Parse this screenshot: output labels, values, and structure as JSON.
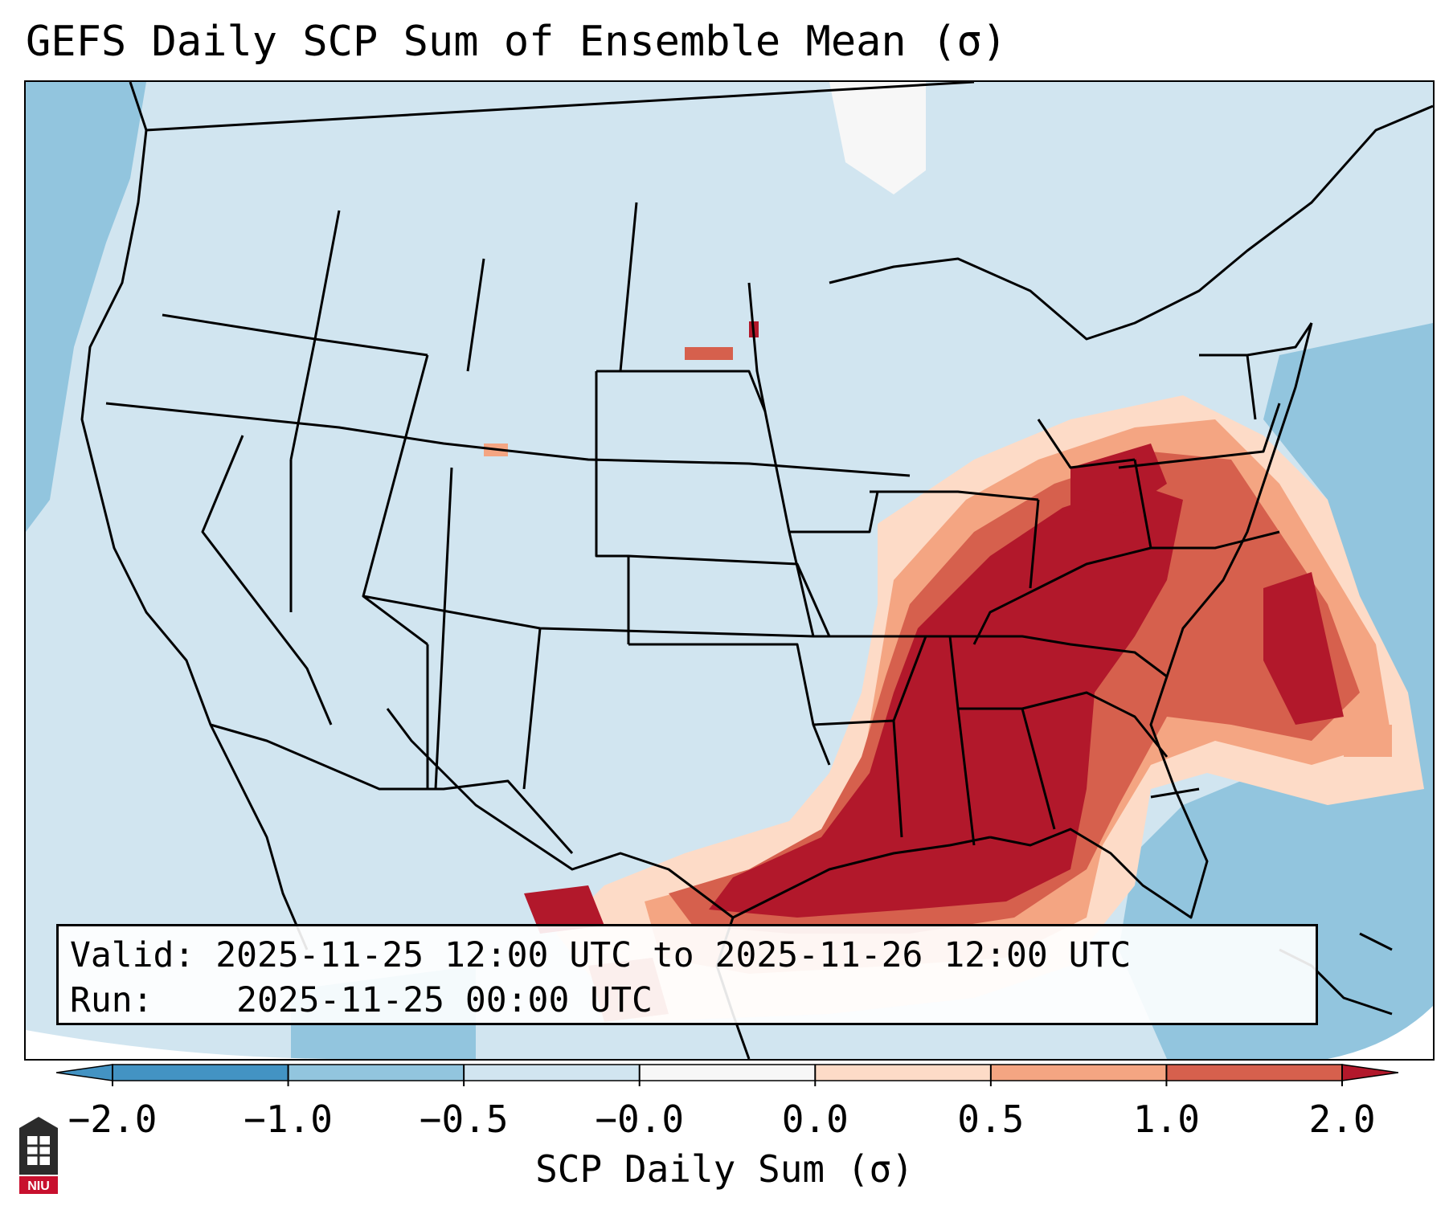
{
  "title": "GEFS Daily SCP Sum of Ensemble Mean (σ)",
  "info": {
    "valid_label": "Valid:",
    "valid_value": "2025-11-25 12:00 UTC to 2025-11-26 12:00 UTC",
    "run_label": "Run:",
    "run_value": "2025-11-25 00:00 UTC"
  },
  "colorbar": {
    "label": "SCP Daily Sum (σ)",
    "ticks": [
      "−2.0",
      "−1.0",
      "−0.5",
      "−0.0",
      "0.0",
      "0.5",
      "1.0",
      "2.0"
    ],
    "colors": [
      "#4393c3",
      "#92c5de",
      "#d1e5f0",
      "#f7f7f7",
      "#fddbc7",
      "#f4a582",
      "#d6604d",
      "#b2182b"
    ],
    "extend": "both"
  },
  "map": {
    "region": "Contiguous United States",
    "highlighted_field": "SCP sum anomaly maximum over Southeast US and Gulf"
  },
  "logo": {
    "icon": "university-building-icon",
    "text": "NIU"
  }
}
